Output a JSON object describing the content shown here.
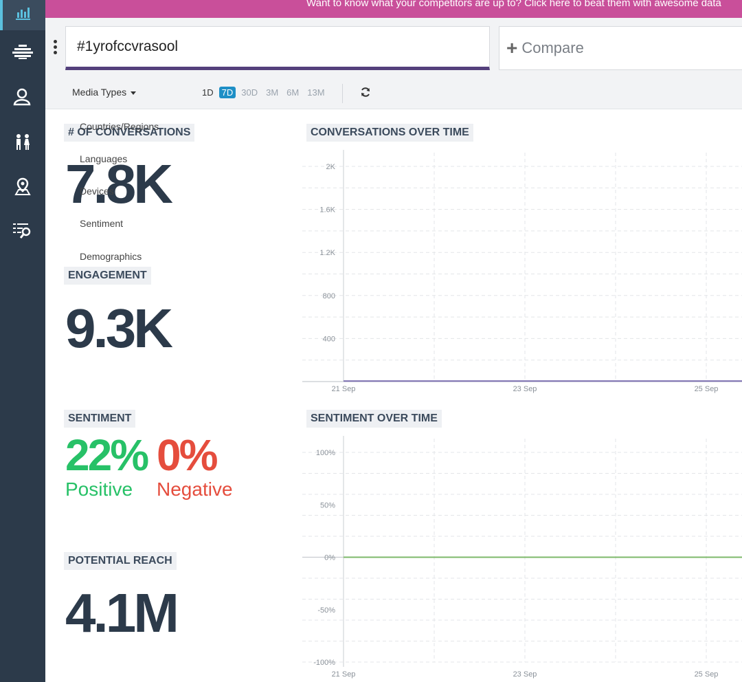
{
  "banner": {
    "text": "Want to know what your competitors are up to? Click here to beat them with awesome data"
  },
  "search": {
    "value": "#1yrofccvrasool",
    "compare_label": "Compare"
  },
  "toolbar": {
    "media_types_label": "Media Types",
    "ranges": [
      "1D",
      "7D",
      "30D",
      "3M",
      "6M",
      "13M"
    ],
    "active_range": "7D"
  },
  "dropdown": {
    "items": [
      "Countries/Regions",
      "Languages",
      "Devices",
      "Sentiment",
      "Demographics"
    ]
  },
  "stats": {
    "conversations": {
      "label": "# OF CONVERSATIONS",
      "value": "7.8K"
    },
    "engagement": {
      "label": "ENGAGEMENT",
      "value": "9.3K"
    },
    "sentiment": {
      "label": "SENTIMENT",
      "positive_value": "22%",
      "positive_label": "Positive",
      "negative_value": "0%",
      "negative_label": "Negative"
    },
    "reach": {
      "label": "POTENTIAL REACH",
      "value": "4.1M"
    }
  },
  "chart_data": [
    {
      "type": "line",
      "title": "CONVERSATIONS OVER TIME",
      "xlabel": "",
      "ylabel": "",
      "x_ticks": [
        "21 Sep",
        "23 Sep",
        "25 Sep"
      ],
      "y_ticks": [
        "400",
        "800",
        "1.2K",
        "1.6K",
        "2K"
      ],
      "ylim": [
        0,
        2000
      ],
      "grid": true,
      "series": [
        {
          "color": "#7b6fb0",
          "x": [
            "21 Sep",
            "22 Sep",
            "23 Sep",
            "24 Sep",
            "25 Sep",
            "26 Sep"
          ],
          "values": [
            5,
            5,
            5,
            5,
            5,
            5
          ]
        }
      ]
    },
    {
      "type": "line",
      "title": "SENTIMENT OVER TIME",
      "xlabel": "",
      "ylabel": "",
      "x_ticks": [
        "21 Sep",
        "23 Sep",
        "25 Sep"
      ],
      "y_ticks": [
        "100%",
        "50%",
        "0%",
        "-50%",
        "-100%"
      ],
      "ylim": [
        -100,
        100
      ],
      "grid": true,
      "series": [
        {
          "color": "#7cb86a",
          "x": [
            "21 Sep",
            "22 Sep",
            "23 Sep",
            "24 Sep",
            "25 Sep",
            "26 Sep"
          ],
          "values": [
            0,
            0,
            0,
            0,
            0,
            0
          ]
        }
      ]
    }
  ]
}
